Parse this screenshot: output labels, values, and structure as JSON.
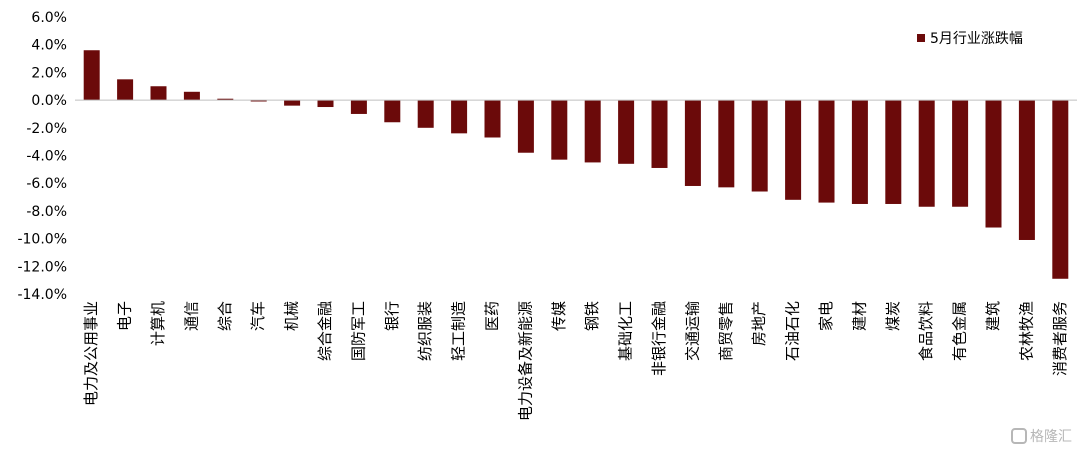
{
  "chart_data": {
    "type": "bar",
    "title": "",
    "xlabel": "",
    "ylabel": "",
    "ylim": [
      -14,
      6
    ],
    "yticks": [
      6,
      4,
      2,
      0,
      -2,
      -4,
      -6,
      -8,
      -10,
      -12,
      -14
    ],
    "ytick_labels": [
      "6.0%",
      "4.0%",
      "2.0%",
      "0.0%",
      "-2.0%",
      "-4.0%",
      "-6.0%",
      "-8.0%",
      "-10.0%",
      "-12.0%",
      "-14.0%"
    ],
    "legend_position": "top-right",
    "series": [
      {
        "name": "5月行业涨跌幅",
        "color": "#6b0a0a",
        "values": [
          3.6,
          1.5,
          1.0,
          0.6,
          0.1,
          -0.1,
          -0.4,
          -0.5,
          -1.0,
          -1.6,
          -2.0,
          -2.4,
          -2.7,
          -3.8,
          -4.3,
          -4.5,
          -4.6,
          -4.9,
          -6.2,
          -6.3,
          -6.6,
          -7.2,
          -7.4,
          -7.5,
          -7.5,
          -7.7,
          -7.7,
          -9.2,
          -10.1,
          -12.9
        ]
      }
    ],
    "categories": [
      "电力及公用事业",
      "电子",
      "计算机",
      "通信",
      "综合",
      "汽车",
      "机械",
      "综合金融",
      "国防军工",
      "银行",
      "纺织服装",
      "轻工制造",
      "医药",
      "电力设备及新能源",
      "传媒",
      "钢铁",
      "基础化工",
      "非银行金融",
      "交通运输",
      "商贸零售",
      "房地产",
      "石油石化",
      "家电",
      "建材",
      "煤炭",
      "食品饮料",
      "有色金属",
      "建筑",
      "农林牧渔",
      "消费者服务"
    ]
  },
  "watermark": {
    "text": "格隆汇",
    "icon": "glh-logo-icon"
  }
}
